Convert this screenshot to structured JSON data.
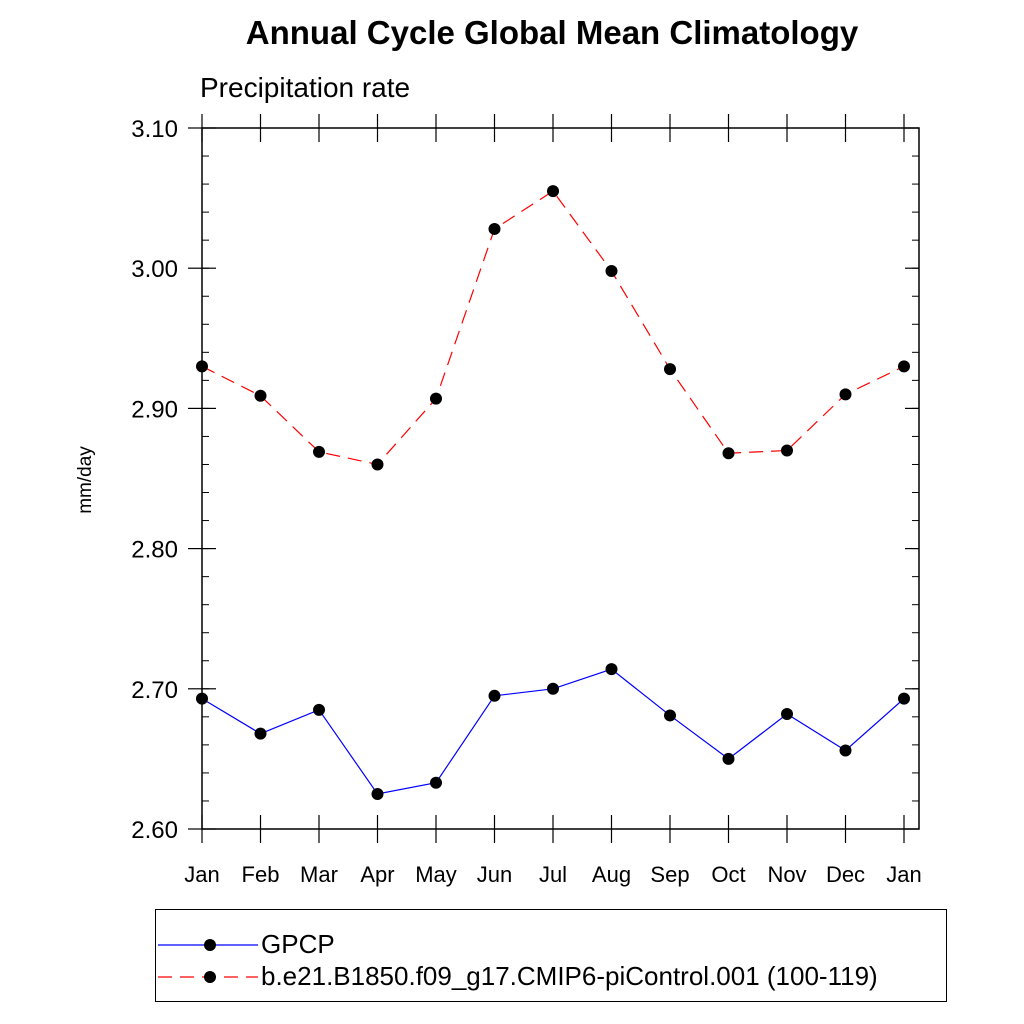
{
  "chart_data": {
    "type": "line",
    "title": "Annual Cycle Global Mean Climatology",
    "subtitle": "Precipitation rate",
    "xlabel": "",
    "ylabel": "mm/day",
    "categories": [
      "Jan",
      "Feb",
      "Mar",
      "Apr",
      "May",
      "Jun",
      "Jul",
      "Aug",
      "Sep",
      "Oct",
      "Nov",
      "Dec",
      "Jan"
    ],
    "ylim": [
      2.6,
      3.1
    ],
    "yticks": [
      2.6,
      2.7,
      2.8,
      2.9,
      3.0,
      3.1
    ],
    "ytick_labels": [
      "2.60",
      "2.70",
      "2.80",
      "2.90",
      "3.00",
      "3.10"
    ],
    "grid": false,
    "legend_position": "bottom",
    "series": [
      {
        "name": "GPCP",
        "color": "#0000ff",
        "line_style": "solid",
        "marker": "circle",
        "values": [
          2.693,
          2.668,
          2.685,
          2.625,
          2.633,
          2.695,
          2.7,
          2.714,
          2.681,
          2.65,
          2.682,
          2.656,
          2.693
        ]
      },
      {
        "name": "b.e21.B1850.f09_g17.CMIP6-piControl.001 (100-119)",
        "color": "#ff0000",
        "line_style": "dashed",
        "marker": "circle",
        "values": [
          2.93,
          2.909,
          2.869,
          2.86,
          2.907,
          3.028,
          3.055,
          2.998,
          2.928,
          2.868,
          2.87,
          2.91,
          2.93
        ]
      }
    ]
  }
}
